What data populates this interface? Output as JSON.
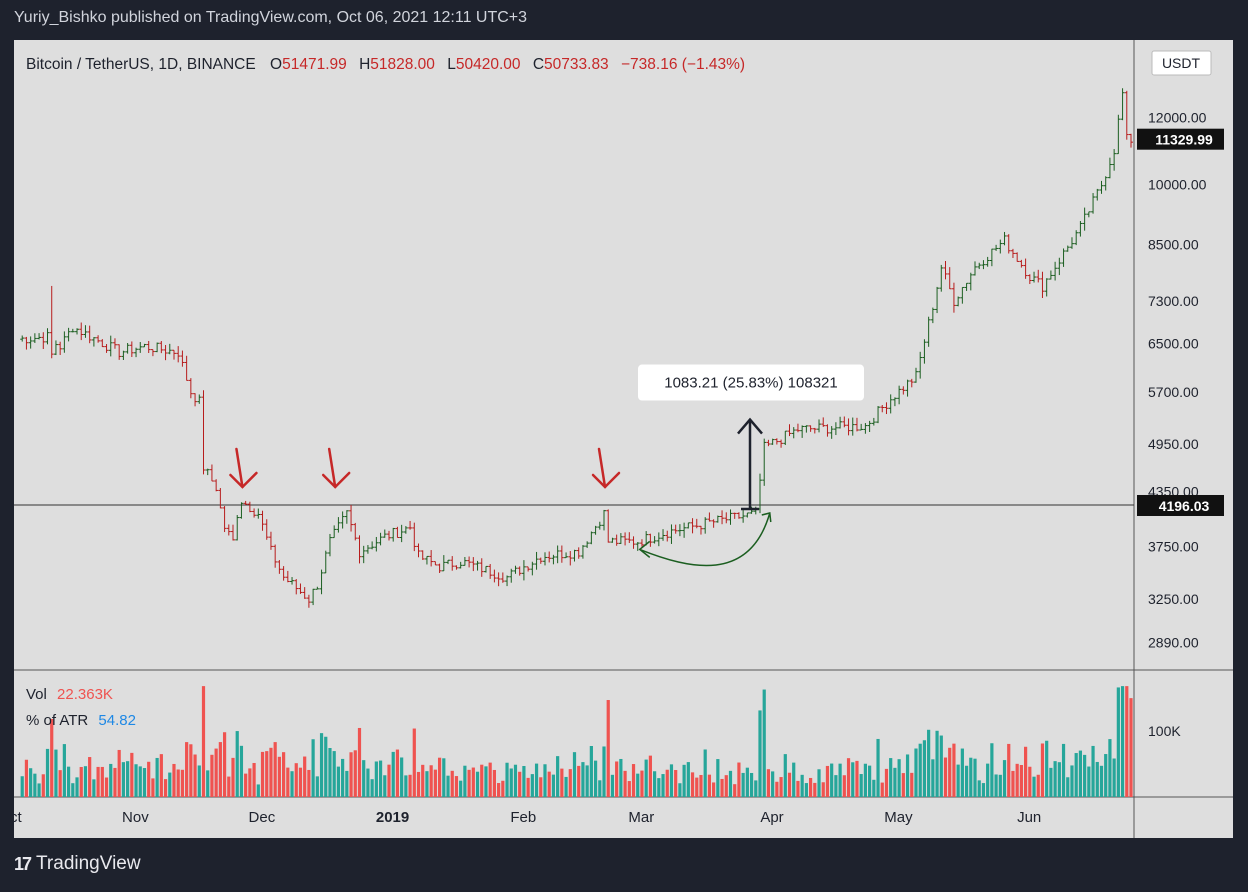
{
  "header": {
    "text": "Yuriy_Bishko published on TradingView.com, Oct 06, 2021 12:11 UTC+3"
  },
  "footer": {
    "logo_text": "TradingView"
  },
  "legend": {
    "symbol": "Bitcoin / TetherUS, 1D, BINANCE",
    "o_label": "O",
    "o_value": "51471.99",
    "h_label": "H",
    "h_value": "51828.00",
    "l_label": "L",
    "l_value": "50420.00",
    "c_label": "C",
    "c_value": "50733.83",
    "change": "−738.16 (−1.43%)"
  },
  "currency_button": "USDT",
  "price_labels": {
    "last": "11329.99",
    "level": "4196.03"
  },
  "measure_label": "1083.21 (25.83%) 108321",
  "volume_panel": {
    "vol_label": "Vol",
    "vol_value": "22.363K",
    "atr_label": "% of ATR",
    "atr_value": "54.82",
    "axis_label": "100K"
  },
  "colors": {
    "up": "#26a69a",
    "down": "#ef5350",
    "candle_up": "#1b5e20",
    "candle_down": "#b71c1c",
    "arrow": "#c62828"
  },
  "chart_data": {
    "type": "ohlc",
    "title": "Bitcoin / TetherUS, 1D, BINANCE",
    "y_ticks": [
      12000,
      10000,
      8500,
      7300,
      6500,
      5700,
      4950,
      4350,
      3750,
      3250,
      2890
    ],
    "y_scale": "log",
    "y_range": [
      2700,
      14500
    ],
    "x_ticks": [
      "Oct",
      "Nov",
      "Dec",
      "2019",
      "Feb",
      "Mar",
      "Apr",
      "May",
      "Jun"
    ],
    "x_range": [
      "2018-10-07",
      "2019-06-28"
    ],
    "horizontal_level": 4196.03,
    "last_price": 11329.99,
    "price_anchors": [
      [
        "2018-10-07",
        6580
      ],
      [
        "2018-10-14",
        6620
      ],
      [
        "2018-10-15",
        6300
      ],
      [
        "2018-10-16",
        6500
      ],
      [
        "2018-10-17",
        6450
      ],
      [
        "2018-10-20",
        6800
      ],
      [
        "2018-10-31",
        6350
      ],
      [
        "2018-11-06",
        6450
      ],
      [
        "2018-11-14",
        6350
      ],
      [
        "2018-11-17",
        5700
      ],
      [
        "2018-11-19",
        5550
      ],
      [
        "2018-11-20",
        4650
      ],
      [
        "2018-11-23",
        4400
      ],
      [
        "2018-11-24",
        4150
      ],
      [
        "2018-11-25",
        3950
      ],
      [
        "2018-11-27",
        3800
      ],
      [
        "2018-11-28",
        4100
      ],
      [
        "2018-11-29",
        4250
      ],
      [
        "2018-12-03",
        4100
      ],
      [
        "2018-12-06",
        3700
      ],
      [
        "2018-12-09",
        3450
      ],
      [
        "2018-12-12",
        3350
      ],
      [
        "2018-12-15",
        3250
      ],
      [
        "2018-12-17",
        3380
      ],
      [
        "2018-12-20",
        3800
      ],
      [
        "2018-12-24",
        4100
      ],
      [
        "2018-12-27",
        3700
      ],
      [
        "2019-01-02",
        3850
      ],
      [
        "2019-01-08",
        3950
      ],
      [
        "2019-01-10",
        3650
      ],
      [
        "2019-01-15",
        3550
      ],
      [
        "2019-01-20",
        3600
      ],
      [
        "2019-01-31",
        3450
      ],
      [
        "2019-02-08",
        3650
      ],
      [
        "2019-02-17",
        3700
      ],
      [
        "2019-02-23",
        4100
      ],
      [
        "2019-02-24",
        3800
      ],
      [
        "2019-03-03",
        3800
      ],
      [
        "2019-03-10",
        3900
      ],
      [
        "2019-03-20",
        4000
      ],
      [
        "2019-03-31",
        4100
      ],
      [
        "2019-04-02",
        4900
      ],
      [
        "2019-04-10",
        5150
      ],
      [
        "2019-04-26",
        5200
      ],
      [
        "2019-05-02",
        5600
      ],
      [
        "2019-05-08",
        5950
      ],
      [
        "2019-05-12",
        7200
      ],
      [
        "2019-05-14",
        8000
      ],
      [
        "2019-05-17",
        7300
      ],
      [
        "2019-05-22",
        8000
      ],
      [
        "2019-05-29",
        8600
      ],
      [
        "2019-06-04",
        7800
      ],
      [
        "2019-06-07",
        7600
      ],
      [
        "2019-06-16",
        8900
      ],
      [
        "2019-06-21",
        10000
      ],
      [
        "2019-06-24",
        11000
      ],
      [
        "2019-06-26",
        12800
      ],
      [
        "2019-06-27",
        11300
      ]
    ],
    "spikes": [
      [
        "2018-10-15",
        7600
      ]
    ],
    "annotation_arrows_at": [
      "2018-11-29",
      "2018-12-21",
      "2019-02-23"
    ],
    "measure": {
      "from_date": "2019-04-01",
      "from_price": 4150,
      "to_price": 5290,
      "label": "1083.21 (25.83%) 108321"
    },
    "volume": {
      "unit_tick": 100000,
      "range": [
        0,
        150000
      ]
    }
  }
}
